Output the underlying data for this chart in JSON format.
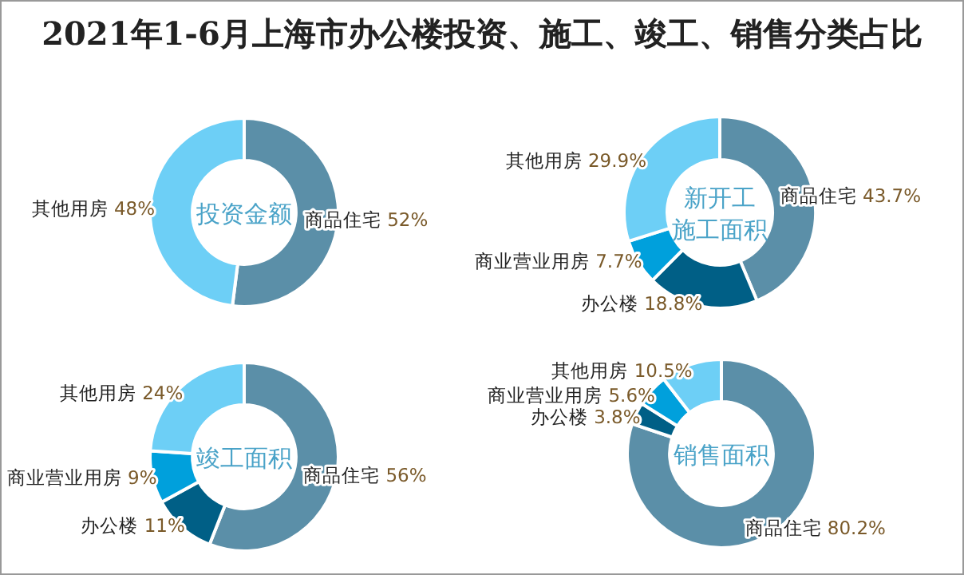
{
  "chart_data": [
    {
      "type": "donut",
      "title": "投资金额",
      "annotations": [
        "2021年1-6月上海市办公楼投资、施工、竣工、销售分类占比"
      ],
      "categories": [
        "商品住宅",
        "其他用房"
      ],
      "values": [
        52,
        48
      ],
      "value_labels": [
        "52%",
        "48%"
      ],
      "colors": [
        "#5b8fa8",
        "#6dcff6"
      ]
    },
    {
      "type": "donut",
      "title": "新开工施工面积",
      "categories": [
        "商品住宅",
        "办公楼",
        "商业营业用房",
        "其他用房"
      ],
      "values": [
        43.7,
        18.8,
        7.7,
        29.9
      ],
      "value_labels": [
        "43.7%",
        "18.8%",
        "7.7%",
        "29.9%"
      ],
      "colors": [
        "#5b8fa8",
        "#005f86",
        "#00a0dc",
        "#6dcff6"
      ]
    },
    {
      "type": "donut",
      "title": "竣工面积",
      "categories": [
        "商品住宅",
        "办公楼",
        "商业营业用房",
        "其他用房"
      ],
      "values": [
        56,
        11,
        9,
        24
      ],
      "value_labels": [
        "56%",
        "11%",
        "9%",
        "24%"
      ],
      "colors": [
        "#5b8fa8",
        "#005f86",
        "#00a0dc",
        "#6dcff6"
      ]
    },
    {
      "type": "donut",
      "title": "销售面积",
      "categories": [
        "商品住宅",
        "办公楼",
        "商业营业用房",
        "其他用房"
      ],
      "values": [
        80.2,
        3.8,
        5.6,
        10.5
      ],
      "value_labels": [
        "80.2%",
        "3.8%",
        "5.6%",
        "10.5%"
      ],
      "colors": [
        "#5b8fa8",
        "#005f86",
        "#00a0dc",
        "#6dcff6"
      ]
    }
  ]
}
